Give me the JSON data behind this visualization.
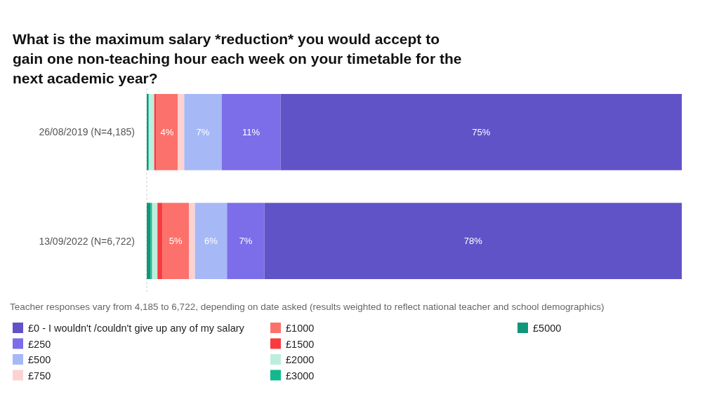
{
  "chart_data": {
    "type": "bar",
    "orientation": "horizontal",
    "stacked": true,
    "title": "What is the maximum salary *reduction* you would accept to gain one non-teaching hour each week on your timetable for the next academic year?",
    "categories": [
      "26/08/2019 (N=4,185)",
      "13/09/2022 (N=6,722)"
    ],
    "xlim": [
      0,
      100
    ],
    "tick_labels": "y",
    "legend": "bottom",
    "annotations": [
      "Teacher responses vary from 4,185 to 6,722, depending on date asked (results weighted to reflect national teacher and school demographics)"
    ],
    "series": [
      {
        "name": "£5000",
        "color": "#10977a",
        "values": [
          0.3,
          0.7
        ]
      },
      {
        "name": "£3000",
        "color": "#12b98c",
        "values": [
          0.1,
          0.3
        ]
      },
      {
        "name": "£2000",
        "color": "#bdeedd",
        "values": [
          1.0,
          1.0
        ]
      },
      {
        "name": "£1500",
        "color": "#f83b3f",
        "values": [
          0.4,
          0.9
        ]
      },
      {
        "name": "£1000",
        "color": "#fc716b",
        "values": [
          4,
          5
        ],
        "value_labels": [
          "4%",
          "5%"
        ]
      },
      {
        "name": "£750",
        "color": "#fdd3d1",
        "values": [
          1.2,
          1.1
        ]
      },
      {
        "name": "£500",
        "color": "#a7b8f6",
        "values": [
          7,
          6
        ],
        "value_labels": [
          "7%",
          "6%"
        ]
      },
      {
        "name": "£250",
        "color": "#7c6ee8",
        "values": [
          11,
          7
        ],
        "value_labels": [
          "11%",
          "7%"
        ]
      },
      {
        "name": "£0 - I wouldn't /couldn't give up any of my salary",
        "color": "#6053c8",
        "values": [
          75,
          78
        ],
        "value_labels": [
          "75%",
          "78%"
        ]
      }
    ]
  }
}
